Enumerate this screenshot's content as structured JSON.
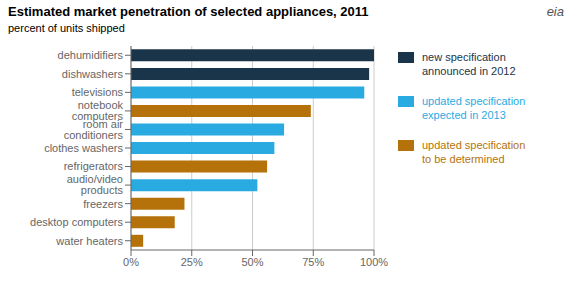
{
  "chart_data": {
    "type": "bar",
    "orientation": "horizontal",
    "stacked": true,
    "grid": true,
    "title": "Estimated market penetration of selected appliances, 2011",
    "subtitle": "percent of units shipped",
    "categories": [
      "water heaters",
      "desktop computers",
      "freezers",
      "audio/video products",
      "refrigerators",
      "clothes washers",
      "room air conditioners",
      "notebook computers",
      "televisions",
      "dishwashers",
      "dehumidifiers"
    ],
    "series": [
      {
        "name": "new specification\nannounced in 2012",
        "color": "#1a3549",
        "values": [
          null,
          null,
          null,
          null,
          null,
          null,
          null,
          null,
          null,
          98,
          100
        ]
      },
      {
        "name": "updated specification\nexpected in 2013",
        "color": "#29abe2",
        "values": [
          null,
          null,
          null,
          52,
          null,
          59,
          63,
          null,
          96,
          null,
          null
        ]
      },
      {
        "name": "updated specification\nto be determined",
        "color": "#b5720a",
        "values": [
          5,
          18,
          22,
          null,
          56,
          null,
          null,
          74,
          null,
          null,
          null
        ]
      }
    ],
    "xlim": [
      0,
      100
    ],
    "xticks": [
      {
        "value": 0,
        "label": "0%"
      },
      {
        "value": 25,
        "label": "25%"
      },
      {
        "value": 50,
        "label": "50%"
      },
      {
        "value": 75,
        "label": "75%"
      },
      {
        "value": 100,
        "label": "100%"
      }
    ],
    "annotations": [
      "eia"
    ]
  }
}
